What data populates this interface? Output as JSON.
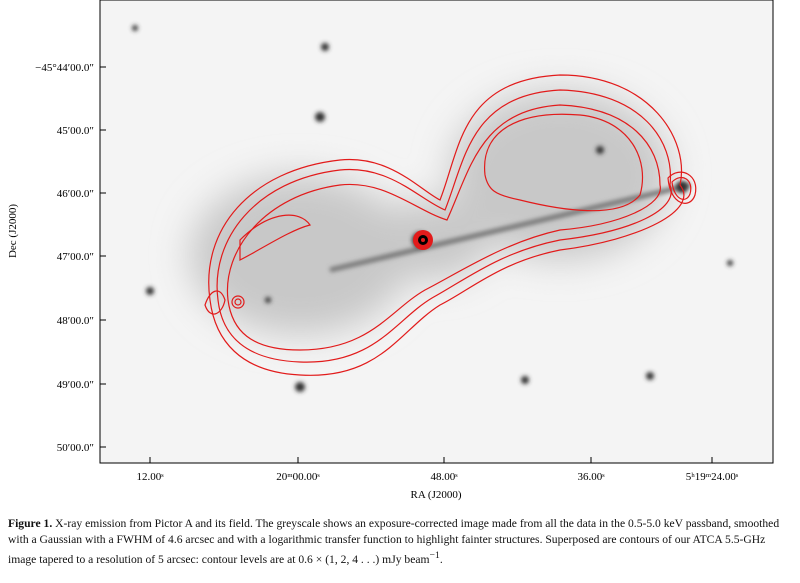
{
  "figure": {
    "y_label": "Dec (J2000)",
    "x_label": "RA (J2000)",
    "y_ticks": [
      "−45°44′00.0″",
      "45′00.0″",
      "46′00.0″",
      "47′00.0″",
      "48′00.0″",
      "49′00.0″",
      "50′00.0″"
    ],
    "x_ticks": [
      "12.00ˢ",
      "20ᵐ00.00ˢ",
      "48.00ˢ",
      "36.00ˢ",
      "5ʰ19ᵐ24.00ˢ"
    ]
  },
  "caption": {
    "label": "Figure 1.",
    "text": "X-ray emission from Pictor A and its field. The greyscale shows an exposure-corrected image made from all the data in the 0.5-5.0 keV passband, smoothed with a Gaussian with a FWHM of 4.6 arcsec and with a logarithmic transfer function to highlight fainter structures. Superposed are contours of our ATCA 5.5-GHz image tapered to a resolution of 5 arcsec: contour levels are at 0.6 × (1, 2, 4 . . .) mJy beam",
    "superscript": "−1",
    "end": "."
  }
}
